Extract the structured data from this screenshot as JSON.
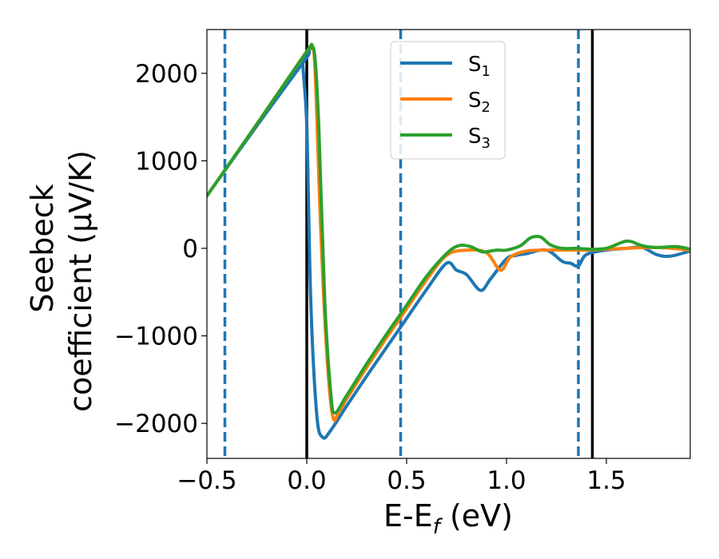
{
  "chart_data": {
    "type": "line",
    "xlabel": "E-E",
    "xlabel_sub": "f",
    "xlabel_unit": " (eV)",
    "ylabel_line1": "Seebeck",
    "ylabel_line2": "coefficient  (μV/K)",
    "xlim": [
      -0.5,
      1.92
    ],
    "ylim": [
      -2400,
      2500
    ],
    "xticks": [
      -0.5,
      0.0,
      0.5,
      1.0,
      1.5
    ],
    "xtick_labels": [
      "−0.5",
      "0.0",
      "0.5",
      "1.0",
      "1.5"
    ],
    "yticks": [
      -2000,
      -1000,
      0,
      1000,
      2000
    ],
    "ytick_labels": [
      "−2000",
      "−1000",
      "0",
      "1000",
      "2000"
    ],
    "legend_position": "top-center",
    "vertical_lines": [
      {
        "x": -0.41,
        "style": "dashed",
        "color": "#1f77b4"
      },
      {
        "x": 0.0,
        "style": "solid",
        "color": "#000000"
      },
      {
        "x": 0.47,
        "style": "dashed",
        "color": "#1f77b4"
      },
      {
        "x": 1.36,
        "style": "dashed",
        "color": "#1f77b4"
      },
      {
        "x": 1.43,
        "style": "solid",
        "color": "#000000"
      }
    ],
    "series": [
      {
        "name": "S",
        "sub": "1",
        "color": "#1f77b4",
        "x": [
          -0.5,
          -0.25,
          0.0,
          -0.02,
          0.0,
          0.02,
          0.05,
          0.08,
          0.12,
          0.2,
          0.3,
          0.4,
          0.5,
          0.6,
          0.7,
          0.75,
          0.8,
          0.87,
          0.92,
          1.0,
          1.05,
          1.1,
          1.2,
          1.28,
          1.32,
          1.36,
          1.4,
          1.5,
          1.6,
          1.68,
          1.75,
          1.82,
          1.92
        ],
        "y": [
          600,
          1400,
          2180,
          2130,
          1400,
          -600,
          -1900,
          -2160,
          -2080,
          -1800,
          -1460,
          -1130,
          -800,
          -470,
          -170,
          -250,
          -300,
          -480,
          -350,
          -120,
          -80,
          -60,
          -20,
          -150,
          -170,
          -200,
          -70,
          -20,
          0,
          10,
          -70,
          -90,
          -30
        ]
      },
      {
        "name": "S",
        "sub": "2",
        "color": "#ff7f0e",
        "x": [
          -0.5,
          -0.25,
          0.0,
          0.02,
          0.04,
          0.07,
          0.1,
          0.13,
          0.16,
          0.2,
          0.3,
          0.4,
          0.5,
          0.6,
          0.7,
          0.8,
          0.9,
          0.97,
          1.02,
          1.1,
          1.2,
          1.3,
          1.4,
          1.5,
          1.6,
          1.7,
          1.8,
          1.92
        ],
        "y": [
          600,
          1420,
          2250,
          2280,
          2100,
          200,
          -1200,
          -1920,
          -1870,
          -1720,
          -1360,
          -1020,
          -690,
          -360,
          -80,
          -20,
          -50,
          -250,
          -100,
          -30,
          -20,
          -20,
          -20,
          -10,
          0,
          10,
          5,
          -20
        ]
      },
      {
        "name": "S",
        "sub": "3",
        "color": "#2ca02c",
        "x": [
          -0.5,
          -0.25,
          0.0,
          0.02,
          0.04,
          0.06,
          0.09,
          0.12,
          0.14,
          0.2,
          0.3,
          0.4,
          0.5,
          0.6,
          0.7,
          0.76,
          0.82,
          0.88,
          0.95,
          1.0,
          1.07,
          1.12,
          1.17,
          1.22,
          1.28,
          1.35,
          1.42,
          1.5,
          1.58,
          1.62,
          1.68,
          1.75,
          1.85,
          1.92
        ],
        "y": [
          600,
          1420,
          2250,
          2290,
          2200,
          1400,
          -600,
          -1650,
          -1880,
          -1680,
          -1320,
          -980,
          -650,
          -320,
          -60,
          30,
          20,
          -40,
          -20,
          -20,
          30,
          120,
          130,
          40,
          0,
          0,
          -10,
          0,
          70,
          80,
          30,
          10,
          20,
          -10
        ]
      }
    ]
  }
}
